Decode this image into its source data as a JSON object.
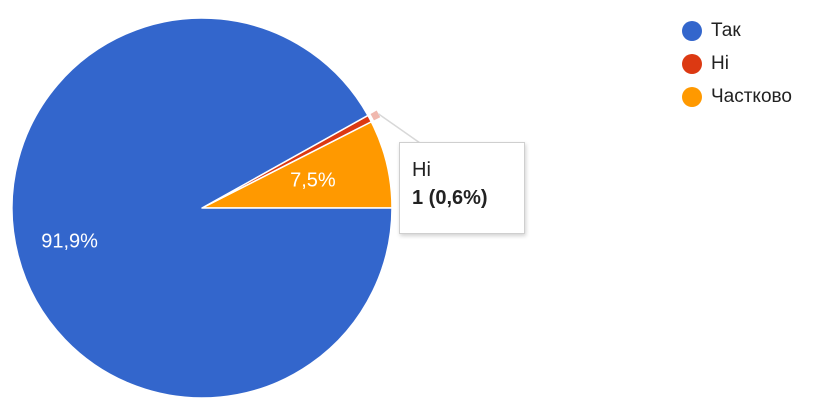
{
  "chart_data": {
    "type": "pie",
    "categories": [
      "Так",
      "Ні",
      "Частково"
    ],
    "values": [
      91.9,
      0.6,
      7.5
    ],
    "colors": [
      "#3366cc",
      "#dc3912",
      "#ff9900"
    ],
    "slice_labels": [
      "91,9%",
      "",
      "7,5%"
    ],
    "legend_position": "right"
  },
  "legend": {
    "items": [
      {
        "label": "Так",
        "color": "#3366cc"
      },
      {
        "label": "Ні",
        "color": "#dc3912"
      },
      {
        "label": "Частково",
        "color": "#ff9900"
      }
    ]
  },
  "tooltip": {
    "title": "Ні",
    "value": "1 (0,6%)"
  }
}
